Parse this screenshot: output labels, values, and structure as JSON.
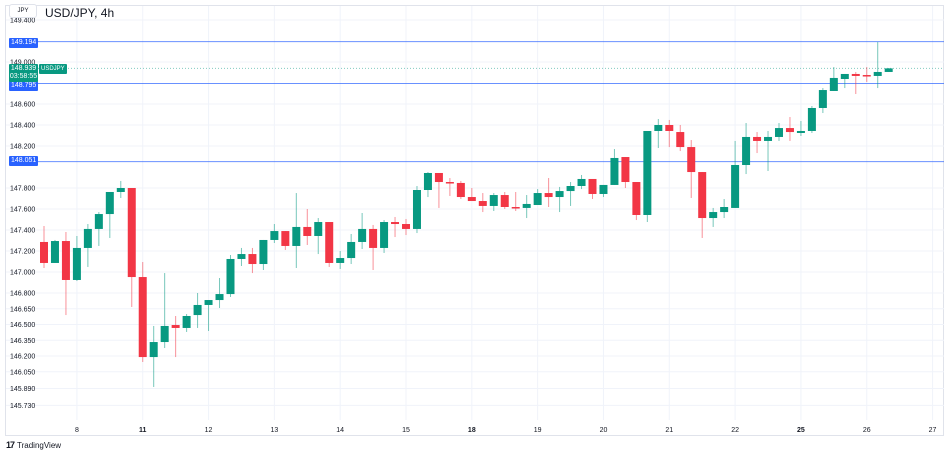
{
  "header": {
    "currency": "JPY",
    "title": "USD/JPY, 4h"
  },
  "price_tag": {
    "price": "148.939",
    "countdown": "03:58:55",
    "symbol": "USDJPY"
  },
  "horizontal_lines": [
    {
      "label": "149.194",
      "value": 149.194
    },
    {
      "label": "148.795",
      "value": 148.795
    },
    {
      "label": "148.051",
      "value": 148.051
    }
  ],
  "footer": {
    "brand": "TradingView"
  },
  "colors": {
    "up": "#089981",
    "down": "#f23645",
    "hline": "#2962ff",
    "grid": "#f0f3fa"
  },
  "chart_data": {
    "type": "candlestick",
    "title": "USD/JPY, 4h",
    "ylim": [
      145.58,
      149.56
    ],
    "grid": true,
    "y_ticks": [
      "149.400",
      "149.000",
      "148.600",
      "148.400",
      "148.200",
      "147.800",
      "147.600",
      "147.400",
      "147.200",
      "147.000",
      "146.800",
      "146.650",
      "146.500",
      "146.350",
      "146.200",
      "146.050",
      "145.890",
      "145.730"
    ],
    "x_ticks": [
      {
        "label": "8",
        "bar": 3
      },
      {
        "label": "11",
        "bar": 9,
        "bold": true
      },
      {
        "label": "12",
        "bar": 15
      },
      {
        "label": "13",
        "bar": 21
      },
      {
        "label": "14",
        "bar": 27
      },
      {
        "label": "15",
        "bar": 33
      },
      {
        "label": "18",
        "bar": 39,
        "bold": true
      },
      {
        "label": "19",
        "bar": 45
      },
      {
        "label": "20",
        "bar": 51
      },
      {
        "label": "21",
        "bar": 57
      },
      {
        "label": "22",
        "bar": 63
      },
      {
        "label": "25",
        "bar": 69,
        "bold": true
      },
      {
        "label": "26",
        "bar": 75
      },
      {
        "label": "27",
        "bar": 81
      }
    ],
    "ohlc": [
      [
        147.286,
        147.438,
        147.038,
        147.086
      ],
      [
        147.086,
        147.305,
        147.086,
        147.295
      ],
      [
        147.295,
        147.381,
        146.59,
        146.924
      ],
      [
        146.924,
        147.343,
        146.914,
        147.229
      ],
      [
        147.229,
        147.457,
        147.048,
        147.41
      ],
      [
        147.41,
        147.571,
        147.248,
        147.552
      ],
      [
        147.552,
        147.762,
        147.324,
        147.762
      ],
      [
        147.762,
        147.867,
        147.705,
        147.8
      ],
      [
        147.8,
        147.8,
        146.667,
        146.952
      ],
      [
        146.952,
        147.095,
        146.143,
        146.19
      ],
      [
        146.19,
        146.486,
        145.905,
        146.333
      ],
      [
        146.333,
        146.99,
        146.276,
        146.486
      ],
      [
        146.495,
        146.581,
        146.19,
        146.467
      ],
      [
        146.467,
        146.6,
        146.429,
        146.581
      ],
      [
        146.59,
        146.8,
        146.467,
        146.686
      ],
      [
        146.686,
        146.733,
        146.438,
        146.733
      ],
      [
        146.733,
        146.943,
        146.657,
        146.79
      ],
      [
        146.79,
        147.162,
        146.762,
        147.124
      ],
      [
        147.124,
        147.229,
        147.057,
        147.171
      ],
      [
        147.171,
        147.229,
        146.99,
        147.076
      ],
      [
        147.076,
        147.305,
        147.019,
        147.305
      ],
      [
        147.305,
        147.457,
        147.276,
        147.39
      ],
      [
        147.39,
        147.39,
        147.21,
        147.248
      ],
      [
        147.248,
        147.752,
        147.038,
        147.429
      ],
      [
        147.429,
        147.6,
        147.257,
        147.343
      ],
      [
        147.343,
        147.514,
        147.171,
        147.476
      ],
      [
        147.476,
        147.476,
        147.048,
        147.086
      ],
      [
        147.086,
        147.2,
        147.029,
        147.133
      ],
      [
        147.133,
        147.362,
        147.076,
        147.286
      ],
      [
        147.286,
        147.562,
        147.219,
        147.41
      ],
      [
        147.41,
        147.448,
        147.019,
        147.229
      ],
      [
        147.229,
        147.495,
        147.181,
        147.476
      ],
      [
        147.476,
        147.524,
        147.333,
        147.457
      ],
      [
        147.457,
        147.505,
        147.352,
        147.41
      ],
      [
        147.41,
        147.819,
        147.371,
        147.781
      ],
      [
        147.781,
        147.952,
        147.714,
        147.943
      ],
      [
        147.943,
        147.943,
        147.61,
        147.857
      ],
      [
        147.857,
        147.895,
        147.724,
        147.848
      ],
      [
        147.848,
        147.867,
        147.695,
        147.714
      ],
      [
        147.714,
        147.8,
        147.676,
        147.676
      ],
      [
        147.676,
        147.752,
        147.571,
        147.629
      ],
      [
        147.629,
        147.752,
        147.581,
        147.733
      ],
      [
        147.733,
        147.762,
        147.6,
        147.619
      ],
      [
        147.619,
        147.762,
        147.581,
        147.61
      ],
      [
        147.61,
        147.733,
        147.514,
        147.648
      ],
      [
        147.638,
        147.79,
        147.638,
        147.752
      ],
      [
        147.752,
        147.895,
        147.619,
        147.714
      ],
      [
        147.714,
        147.81,
        147.571,
        147.771
      ],
      [
        147.771,
        147.857,
        147.629,
        147.819
      ],
      [
        147.819,
        147.924,
        147.79,
        147.886
      ],
      [
        147.886,
        147.886,
        147.695,
        147.743
      ],
      [
        147.743,
        147.829,
        147.714,
        147.829
      ],
      [
        147.829,
        148.171,
        147.829,
        148.086
      ],
      [
        148.095,
        148.095,
        147.8,
        147.857
      ],
      [
        147.857,
        147.857,
        147.495,
        147.543
      ],
      [
        147.543,
        148.343,
        147.476,
        148.343
      ],
      [
        148.343,
        148.457,
        148.181,
        148.4
      ],
      [
        148.4,
        148.448,
        148.19,
        148.343
      ],
      [
        148.333,
        148.4,
        148.152,
        148.19
      ],
      [
        148.19,
        148.257,
        147.705,
        147.952
      ],
      [
        147.952,
        147.952,
        147.324,
        147.514
      ],
      [
        147.514,
        147.61,
        147.429,
        147.571
      ],
      [
        147.571,
        147.695,
        147.514,
        147.619
      ],
      [
        147.61,
        148.248,
        147.61,
        148.019
      ],
      [
        148.019,
        148.419,
        147.933,
        148.286
      ],
      [
        148.286,
        148.333,
        148.133,
        148.248
      ],
      [
        148.248,
        148.343,
        147.962,
        148.286
      ],
      [
        148.286,
        148.419,
        148.248,
        148.371
      ],
      [
        148.371,
        148.476,
        148.248,
        148.333
      ],
      [
        148.324,
        148.438,
        148.295,
        148.343
      ],
      [
        148.343,
        148.581,
        148.324,
        148.562
      ],
      [
        148.562,
        148.752,
        148.514,
        148.733
      ],
      [
        148.724,
        148.952,
        148.724,
        148.848
      ],
      [
        148.838,
        148.886,
        148.752,
        148.886
      ],
      [
        148.886,
        148.905,
        148.695,
        148.867
      ],
      [
        148.876,
        148.952,
        148.81,
        148.867
      ],
      [
        148.867,
        149.19,
        148.752,
        148.905
      ],
      [
        148.905,
        148.943,
        148.905,
        148.939
      ]
    ],
    "last_price": 148.939
  }
}
